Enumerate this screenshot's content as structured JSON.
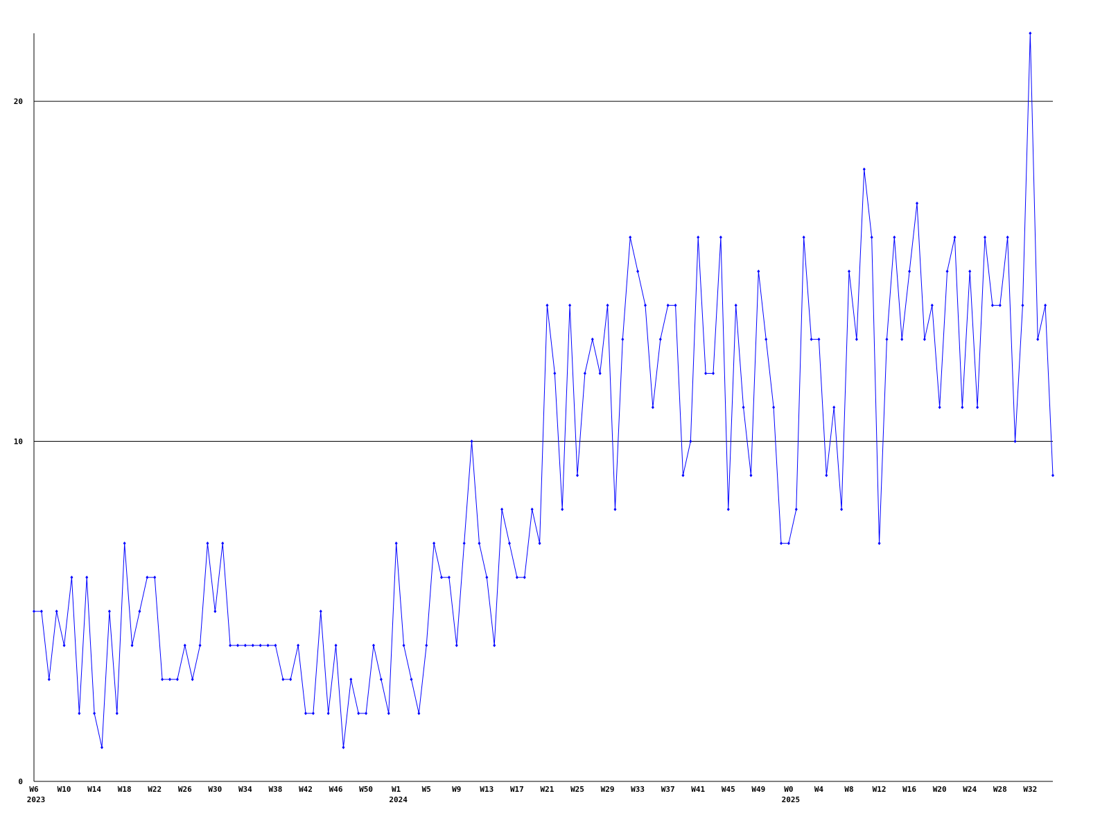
{
  "chart_data": {
    "type": "line",
    "color": "#0000ff",
    "grid": true,
    "categories": [
      "W6",
      null,
      null,
      null,
      "W10",
      null,
      null,
      null,
      "W14",
      null,
      null,
      null,
      "W18",
      null,
      null,
      null,
      "W22",
      null,
      null,
      null,
      "W26",
      null,
      null,
      null,
      "W30",
      null,
      null,
      null,
      "W34",
      null,
      null,
      null,
      "W38",
      null,
      null,
      null,
      "W42",
      null,
      null,
      null,
      "W46",
      null,
      null,
      null,
      "W50",
      null,
      null,
      null,
      "W1",
      null,
      null,
      null,
      "W5",
      null,
      null,
      null,
      "W9",
      null,
      null,
      null,
      "W13",
      null,
      null,
      null,
      "W17",
      null,
      null,
      null,
      "W21",
      null,
      null,
      null,
      "W25",
      null,
      null,
      null,
      "W29",
      null,
      null,
      null,
      "W33",
      null,
      null,
      null,
      "W37",
      null,
      null,
      null,
      "W41",
      null,
      null,
      null,
      "W45",
      null,
      null,
      null,
      "W49",
      null,
      null,
      null,
      "W0",
      null,
      null,
      null,
      "W4",
      null,
      null,
      null,
      "W8",
      null,
      null,
      null,
      "W12",
      null,
      null,
      null,
      "W16",
      null,
      null,
      null,
      "W20",
      null,
      null,
      null,
      "W24",
      null,
      null,
      null,
      "W28",
      null,
      null,
      null,
      "W32",
      null,
      null,
      null
    ],
    "year_labels": [
      "2023",
      null,
      null,
      null,
      null,
      null,
      null,
      null,
      null,
      null,
      null,
      null,
      null,
      null,
      null,
      null,
      null,
      null,
      null,
      null,
      null,
      null,
      null,
      null,
      null,
      null,
      null,
      null,
      null,
      null,
      null,
      null,
      null,
      null,
      null,
      null,
      null,
      null,
      null,
      null,
      null,
      null,
      null,
      null,
      null,
      null,
      null,
      null,
      "2024",
      null,
      null,
      null,
      null,
      null,
      null,
      null,
      null,
      null,
      null,
      null,
      null,
      null,
      null,
      null,
      null,
      null,
      null,
      null,
      null,
      null,
      null,
      null,
      null,
      null,
      null,
      null,
      null,
      null,
      null,
      null,
      null,
      null,
      null,
      null,
      null,
      null,
      null,
      null,
      null,
      null,
      null,
      null,
      null,
      null,
      null,
      null,
      null,
      null,
      null,
      null,
      "2025",
      null,
      null,
      null,
      null,
      null,
      null,
      null,
      null,
      null,
      null,
      null,
      null,
      null,
      null,
      null,
      null,
      null,
      null,
      null,
      null,
      null,
      null,
      null,
      null,
      null,
      null,
      null,
      null,
      null,
      null,
      null,
      null,
      null,
      null,
      null
    ],
    "values": [
      5,
      5,
      3,
      5,
      4,
      6,
      2,
      6,
      2,
      1,
      5,
      2,
      7,
      4,
      5,
      6,
      6,
      3,
      3,
      3,
      4,
      3,
      4,
      7,
      5,
      7,
      4,
      4,
      4,
      4,
      4,
      4,
      4,
      3,
      3,
      4,
      2,
      2,
      5,
      2,
      4,
      1,
      3,
      2,
      2,
      4,
      3,
      2,
      7,
      4,
      3,
      2,
      4,
      7,
      6,
      6,
      4,
      7,
      10,
      7,
      6,
      4,
      8,
      7,
      6,
      6,
      8,
      7,
      14,
      12,
      8,
      14,
      9,
      12,
      13,
      12,
      14,
      8,
      13,
      16,
      15,
      14,
      11,
      13,
      14,
      14,
      9,
      10,
      16,
      12,
      12,
      16,
      8,
      14,
      11,
      9,
      15,
      13,
      11,
      7,
      7,
      8,
      16,
      13,
      13,
      9,
      11,
      8,
      15,
      13,
      18,
      16,
      7,
      13,
      16,
      13,
      15,
      17,
      13,
      14,
      11,
      15,
      16,
      11,
      15,
      11,
      16,
      14,
      14,
      16,
      10,
      14,
      22,
      13,
      14,
      9
    ],
    "ylim": [
      0,
      22
    ],
    "yticks": [
      0,
      10,
      20
    ]
  }
}
